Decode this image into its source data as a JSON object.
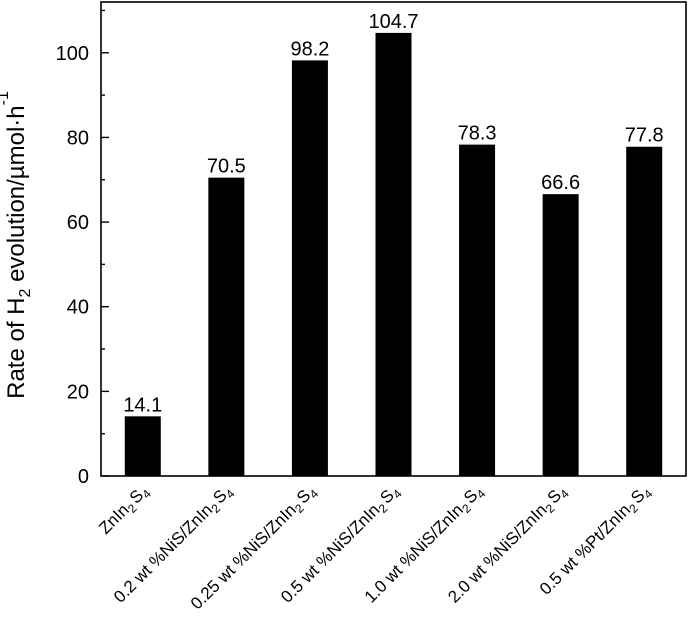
{
  "chart_data": {
    "type": "bar",
    "categories": [
      "ZnIn2S4",
      "0.2 wt %NiS/ZnIn2S4",
      "0.25 wt %NiS/ZnIn2S4",
      "0.5 wt %NiS/ZnIn2S4",
      "1.0 wt %NiS/ZnIn2S4",
      "2.0 wt %NiS/ZnIn2S4",
      "0.5 wt %Pt/ZnIn2S4"
    ],
    "category_labels": [
      [
        {
          "t": "ZnIn"
        },
        {
          "t": "2",
          "sub": true
        },
        {
          "t": "S"
        },
        {
          "t": "4",
          "sub": true
        }
      ],
      [
        {
          "t": "0.2 wt %NiS/ZnIn"
        },
        {
          "t": "2",
          "sub": true
        },
        {
          "t": "S"
        },
        {
          "t": "4",
          "sub": true
        }
      ],
      [
        {
          "t": "0.25 wt %NiS/ZnIn"
        },
        {
          "t": "2",
          "sub": true
        },
        {
          "t": "S"
        },
        {
          "t": "4",
          "sub": true
        }
      ],
      [
        {
          "t": "0.5 wt %NiS/ZnIn"
        },
        {
          "t": "2",
          "sub": true
        },
        {
          "t": "S"
        },
        {
          "t": "4",
          "sub": true
        }
      ],
      [
        {
          "t": "1.0 wt %NiS/ZnIn"
        },
        {
          "t": "2",
          "sub": true
        },
        {
          "t": "S"
        },
        {
          "t": "4",
          "sub": true
        }
      ],
      [
        {
          "t": "2.0 wt %NiS/ZnIn"
        },
        {
          "t": "2",
          "sub": true
        },
        {
          "t": "S"
        },
        {
          "t": "4",
          "sub": true
        }
      ],
      [
        {
          "t": "0.5 wt %Pt/ZnIn"
        },
        {
          "t": "2",
          "sub": true
        },
        {
          "t": "S"
        },
        {
          "t": "4",
          "sub": true
        }
      ]
    ],
    "values": [
      14.1,
      70.5,
      98.2,
      104.7,
      78.3,
      66.6,
      77.8
    ],
    "value_labels": [
      "14.1",
      "70.5",
      "98.2",
      "104.7",
      "78.3",
      "66.6",
      "77.8"
    ],
    "ylabel": "Rate of H2 evolution/µmol·h-1",
    "ylabel_parts": [
      {
        "t": "Rate of H"
      },
      {
        "t": "2",
        "sub": true
      },
      {
        "t": " evolution/µmol·h"
      },
      {
        "t": "-1",
        "sup": true
      }
    ],
    "xlabel": "",
    "ylim": [
      0,
      112
    ],
    "yticks": [
      0,
      20,
      40,
      60,
      80,
      100
    ],
    "ytick_labels": [
      "0",
      "20",
      "40",
      "60",
      "80",
      "100"
    ],
    "bar_color": "#000000",
    "grid": false,
    "legend": "none"
  }
}
